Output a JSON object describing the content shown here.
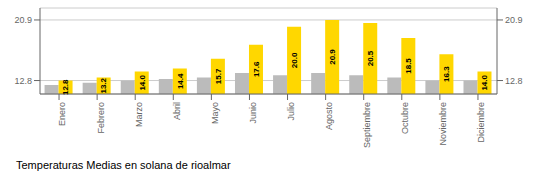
{
  "chart_data": {
    "type": "bar",
    "title": "Temperaturas Medias en solana de rioalmar",
    "categories": [
      "Enero",
      "Febrero",
      "Marzo",
      "Abril",
      "Mayo",
      "Junio",
      "Julio",
      "Agosto",
      "Septiembre",
      "Octubre",
      "Noviembre",
      "Diciembre"
    ],
    "series": [
      {
        "color": "#BBBBBB",
        "values": [
          12.2,
          12.5,
          12.8,
          13.0,
          13.2,
          13.8,
          13.5,
          13.8,
          13.5,
          13.2,
          12.8,
          12.8
        ]
      },
      {
        "color": "#FFD700",
        "values": [
          12.8,
          13.2,
          14.0,
          14.4,
          15.7,
          17.6,
          20.0,
          20.9,
          20.5,
          18.5,
          16.3,
          14.0
        ],
        "data_labels": true,
        "value_labels": [
          "12.8",
          "13.2",
          "14.0",
          "14.4",
          "15.7",
          "17.6",
          "20.0",
          "20.9",
          "20.5",
          "18.5",
          "16.3",
          "14.0"
        ]
      }
    ],
    "ylim": [
      11.0,
      22.5
    ],
    "yticks": [
      12.8,
      20.9
    ],
    "y2lim": [
      11.0,
      22.5
    ],
    "y2ticks": [
      12.8,
      20.9
    ],
    "grid": true
  }
}
